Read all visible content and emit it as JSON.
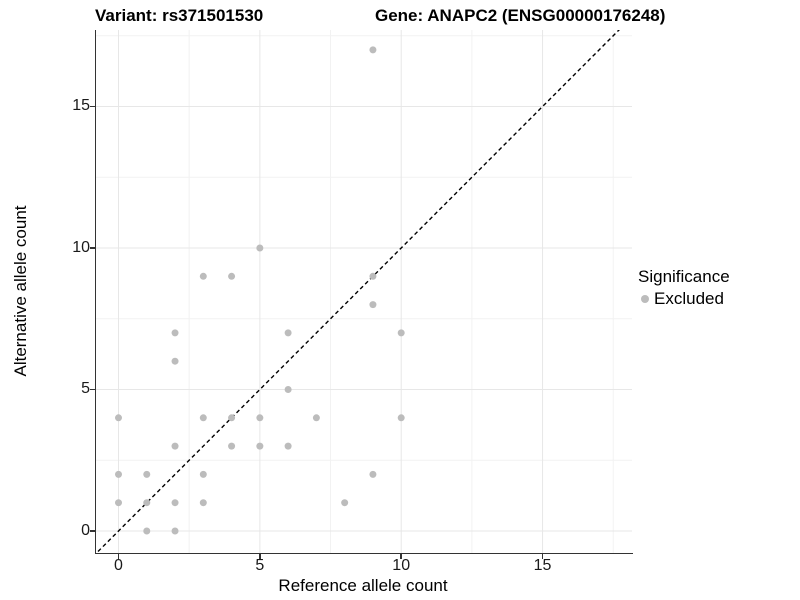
{
  "chart_data": {
    "type": "scatter",
    "title_left": "Variant: rs371501530",
    "title_right": "Gene: ANAPC2 (ENSG00000176248)",
    "xlabel": "Reference allele count",
    "ylabel": "Alternative allele count",
    "xlim": [
      -0.8,
      18.2
    ],
    "ylim": [
      -0.8,
      17.7
    ],
    "x_ticks": [
      0,
      5,
      10,
      15
    ],
    "y_ticks": [
      0,
      5,
      10,
      15
    ],
    "x_minor_ticks": [
      2.5,
      7.5,
      12.5,
      17.5
    ],
    "y_minor_ticks": [
      2.5,
      7.5,
      12.5,
      17.5
    ],
    "grid": "major+minor",
    "major_grid_color": "#e7e7e7",
    "minor_grid_color": "#f2f2f2",
    "identity_line": {
      "style": "dashed",
      "color": "#000000",
      "equation": "y = x"
    },
    "point_color": "#bcbcbc",
    "points": [
      [
        0,
        1
      ],
      [
        0,
        2
      ],
      [
        0,
        4
      ],
      [
        1,
        0
      ],
      [
        1,
        1
      ],
      [
        1,
        2
      ],
      [
        2,
        0
      ],
      [
        2,
        1
      ],
      [
        2,
        3
      ],
      [
        2,
        6
      ],
      [
        2,
        7
      ],
      [
        3,
        1
      ],
      [
        3,
        2
      ],
      [
        3,
        4
      ],
      [
        3,
        9
      ],
      [
        4,
        3
      ],
      [
        4,
        4
      ],
      [
        4,
        9
      ],
      [
        5,
        3
      ],
      [
        5,
        4
      ],
      [
        5,
        10
      ],
      [
        6,
        3
      ],
      [
        6,
        5
      ],
      [
        6,
        7
      ],
      [
        7,
        4
      ],
      [
        8,
        1
      ],
      [
        9,
        2
      ],
      [
        9,
        8
      ],
      [
        9,
        9
      ],
      [
        9,
        17
      ],
      [
        10,
        4
      ],
      [
        10,
        7
      ]
    ],
    "legend": {
      "position": "right",
      "title": "Significance",
      "items": [
        {
          "label": "Excluded",
          "color": "#bcbcbc"
        }
      ]
    }
  }
}
